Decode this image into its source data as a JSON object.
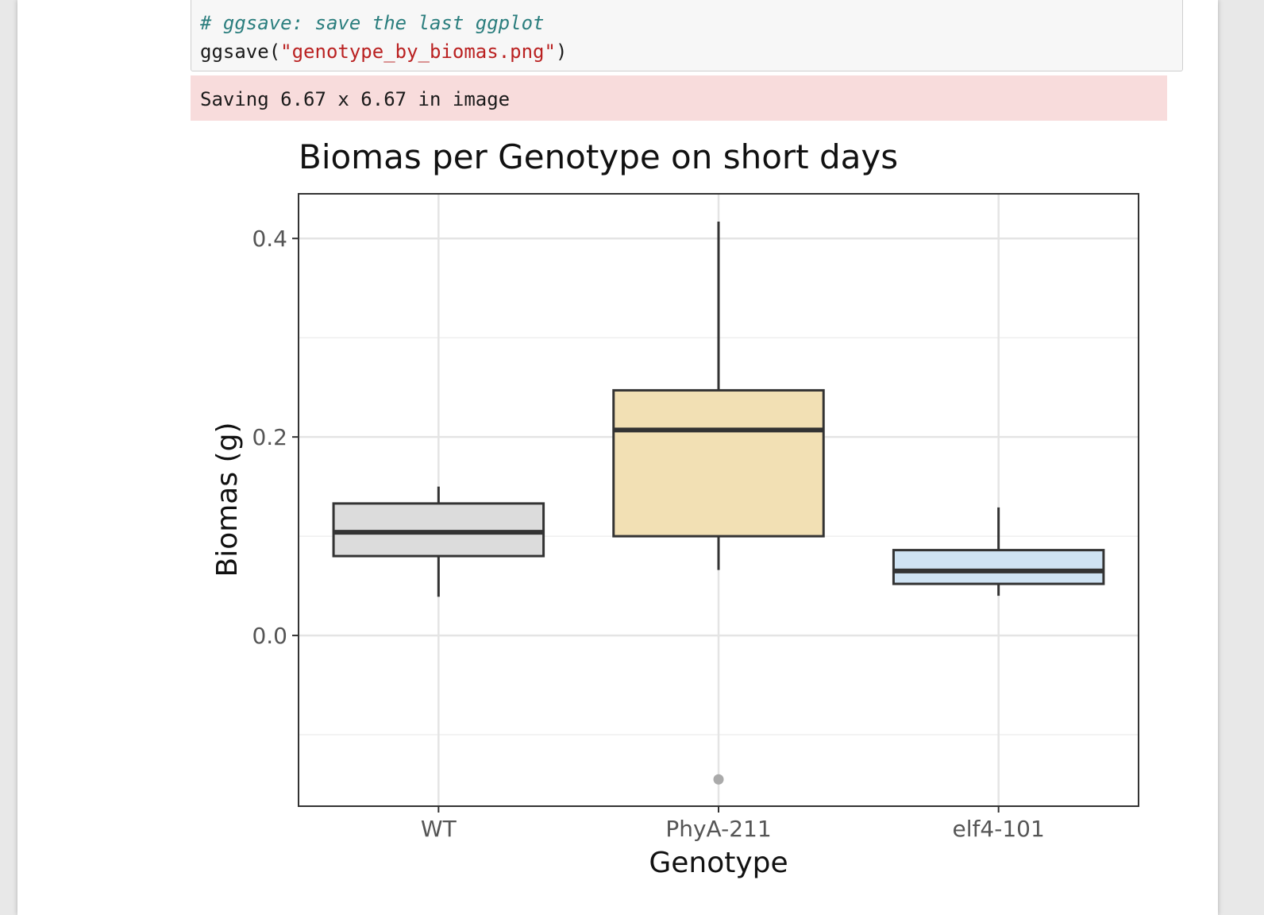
{
  "code_cell": {
    "comment": "# ggsave: save the last ggplot",
    "call_prefix": "ggsave(",
    "call_string": "\"genotype_by_biomas.png\"",
    "call_suffix": ")"
  },
  "output": {
    "stderr_text": "Saving 6.67 x 6.67 in image"
  },
  "colors": {
    "WT": "#dcdcdc",
    "PhyA-211": "#f2e0b4",
    "elf4-101": "#cfe3f3",
    "stderr_bg": "#f8dcdc"
  },
  "chart_data": {
    "type": "boxplot",
    "title": "Biomas per Genotype on short days",
    "xlabel": "Genotype",
    "ylabel": "Biomas (g)",
    "ylim": [
      -0.172,
      0.445
    ],
    "yticks": [
      0.0,
      0.2,
      0.4
    ],
    "ytick_labels": [
      "0.0",
      "0.2",
      "0.4"
    ],
    "minor_gridlines": [
      -0.1,
      0.1,
      0.3
    ],
    "grid": true,
    "categories": [
      "WT",
      "PhyA-211",
      "elf4-101"
    ],
    "boxes": [
      {
        "name": "WT",
        "whisker_low": 0.039,
        "q1": 0.08,
        "median": 0.104,
        "q3": 0.133,
        "whisker_high": 0.15,
        "outliers": []
      },
      {
        "name": "PhyA-211",
        "whisker_low": 0.066,
        "q1": 0.1,
        "median": 0.207,
        "q3": 0.247,
        "whisker_high": 0.417,
        "outliers": [
          -0.145
        ]
      },
      {
        "name": "elf4-101",
        "whisker_low": 0.04,
        "q1": 0.052,
        "median": 0.065,
        "q3": 0.086,
        "whisker_high": 0.129,
        "outliers": []
      }
    ]
  }
}
